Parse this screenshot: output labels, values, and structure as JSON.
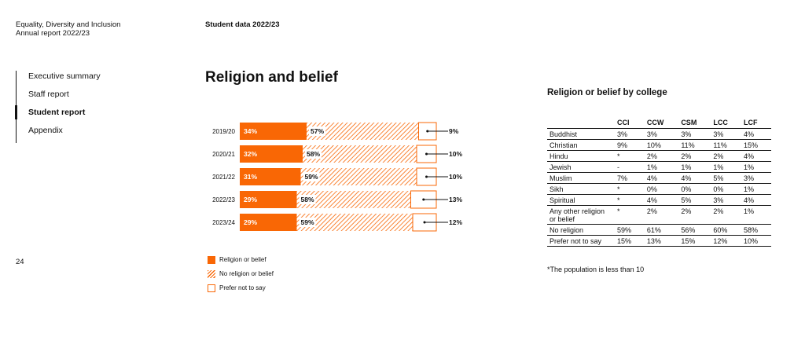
{
  "header": {
    "left_line1": "Equality, Diversity and Inclusion",
    "left_line2": "Annual report 2022/23",
    "center": "Student data 2022/23"
  },
  "nav": {
    "items": [
      {
        "label": "Executive summary",
        "active": false
      },
      {
        "label": "Staff report",
        "active": false
      },
      {
        "label": "Student report",
        "active": true
      },
      {
        "label": "Appendix",
        "active": false
      }
    ]
  },
  "page_number": "24",
  "title": "Religion and belief",
  "colors": {
    "accent": "#f96705",
    "text": "#111111"
  },
  "chart_data": {
    "type": "bar",
    "orientation": "horizontal",
    "stacked": true,
    "categories": [
      "2019/20",
      "2020/21",
      "2021/22",
      "2022/23",
      "2023/24"
    ],
    "series": [
      {
        "name": "Religion or belief",
        "values": [
          34,
          32,
          31,
          29,
          29
        ],
        "labels": [
          "34%",
          "32%",
          "31%",
          "29%",
          "29%"
        ]
      },
      {
        "name": "No religion or belief",
        "values": [
          57,
          58,
          59,
          58,
          59
        ],
        "labels": [
          "57%",
          "58%",
          "59%",
          "58%",
          "59%"
        ]
      },
      {
        "name": "Prefer not to say",
        "values": [
          9,
          10,
          10,
          13,
          12
        ],
        "labels": [
          "9%",
          "10%",
          "10%",
          "13%",
          "12%"
        ]
      }
    ],
    "xlim": [
      0,
      100
    ],
    "legend_position": "bottom"
  },
  "table": {
    "title": "Religion or belief by college",
    "columns": [
      "",
      "CCI",
      "CCW",
      "CSM",
      "LCC",
      "LCF"
    ],
    "rows": [
      [
        "Buddhist",
        "3%",
        "3%",
        "3%",
        "3%",
        "4%"
      ],
      [
        "Christian",
        "9%",
        "10%",
        "11%",
        "11%",
        "15%"
      ],
      [
        "Hindu",
        "*",
        "2%",
        "2%",
        "2%",
        "4%"
      ],
      [
        "Jewish",
        "-",
        "1%",
        "1%",
        "1%",
        "1%"
      ],
      [
        "Muslim",
        "7%",
        "4%",
        "4%",
        "5%",
        "3%"
      ],
      [
        "Sikh",
        "*",
        "0%",
        "0%",
        "0%",
        "1%"
      ],
      [
        "Spiritual",
        "*",
        "4%",
        "5%",
        "3%",
        "4%"
      ],
      [
        "Any other religion or belief",
        "*",
        "2%",
        "2%",
        "2%",
        "1%"
      ],
      [
        "No religion",
        "59%",
        "61%",
        "56%",
        "60%",
        "58%"
      ],
      [
        "Prefer not to say",
        "15%",
        "13%",
        "15%",
        "12%",
        "10%"
      ]
    ],
    "footnote": "*The population is less than 10"
  }
}
